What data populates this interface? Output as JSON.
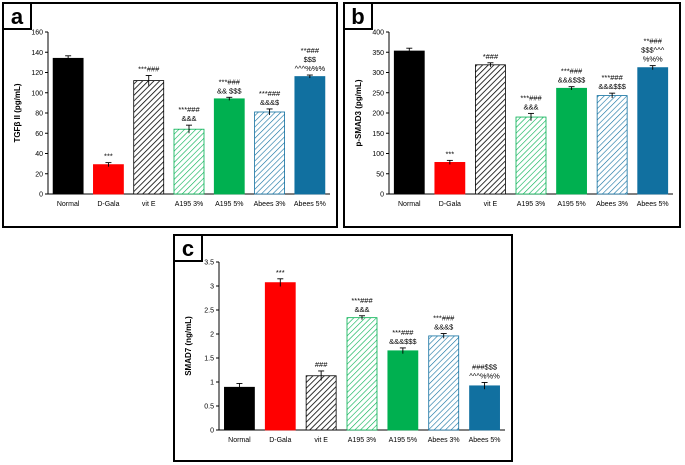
{
  "chart_data": [
    {
      "id": "a",
      "panel_letter": "a",
      "type": "bar",
      "ylabel": "TGFβ II (pg/mL)",
      "ylim": [
        0,
        160
      ],
      "yticks": [
        0,
        20,
        40,
        60,
        80,
        100,
        120,
        140,
        160
      ],
      "categories": [
        "Normal",
        "D-Gala",
        "vit E",
        "A195 3%",
        "A195 5%",
        "Abees 3%",
        "Abees 5%"
      ],
      "values": [
        134,
        29,
        112,
        64,
        94,
        81,
        116
      ],
      "errors": [
        2.5,
        2,
        5,
        4,
        1.5,
        3,
        1.5
      ],
      "annotations": [
        [],
        [
          "***"
        ],
        [
          "***###"
        ],
        [
          "***###",
          "&&&"
        ],
        [
          "***###",
          "&& $$$"
        ],
        [
          "***###",
          "&&&$"
        ],
        [
          "**###",
          "$$$",
          "^^^%%%"
        ]
      ]
    },
    {
      "id": "b",
      "panel_letter": "b",
      "type": "bar",
      "ylabel": "p-SMAD3 (pg/mL)",
      "ylim": [
        0,
        400
      ],
      "yticks": [
        0,
        50,
        100,
        150,
        200,
        250,
        300,
        350,
        400
      ],
      "categories": [
        "Normal",
        "D-Gala",
        "vit E",
        "A195 3%",
        "A195 5%",
        "Abees 3%",
        "Abees 5%"
      ],
      "values": [
        353,
        78,
        319,
        190,
        261,
        243,
        312
      ],
      "errors": [
        7,
        5,
        5,
        9,
        4,
        6,
        5
      ],
      "annotations": [
        [],
        [
          "***"
        ],
        [
          "*###"
        ],
        [
          "***###",
          "&&&"
        ],
        [
          "***###",
          "&&&$$$"
        ],
        [
          "***###",
          "&&&$$$"
        ],
        [
          "**###",
          "$$$^^^",
          "%%%"
        ]
      ]
    },
    {
      "id": "c",
      "panel_letter": "c",
      "type": "bar",
      "ylabel": "SMAD7 (ng/mL)",
      "ylim": [
        0,
        3.5
      ],
      "yticks": [
        0,
        0.5,
        1,
        1.5,
        2,
        2.5,
        3,
        3.5
      ],
      "categories": [
        "Normal",
        "D-Gala",
        "vit E",
        "A195 3%",
        "A195 5%",
        "Abees 3%",
        "Abees 5%"
      ],
      "values": [
        0.89,
        3.07,
        1.13,
        2.34,
        1.65,
        1.96,
        0.92
      ],
      "errors": [
        0.08,
        0.08,
        0.1,
        0.04,
        0.06,
        0.05,
        0.07
      ],
      "annotations": [
        [],
        [
          "***"
        ],
        [
          "###"
        ],
        [
          "***###",
          "&&&"
        ],
        [
          "***###",
          "&&&$$$"
        ],
        [
          "***###",
          "&&&$"
        ],
        [
          "###$$$",
          "^^^%%%"
        ]
      ]
    }
  ],
  "styles": {
    "fills": [
      "#000000",
      "#ff0000",
      "hatch-black",
      "hatch-green",
      "#00b050",
      "hatch-blue",
      "#1170a0"
    ]
  }
}
